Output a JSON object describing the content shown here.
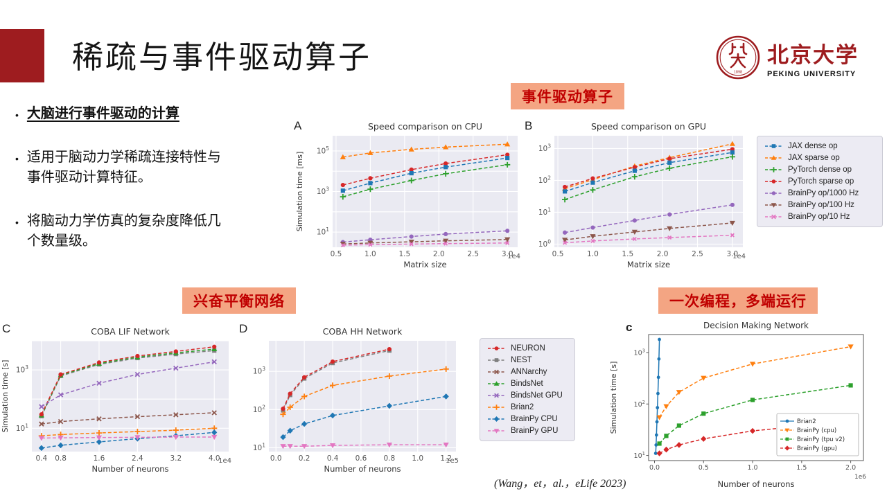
{
  "header": {
    "title": "稀疏与事件驱动算子",
    "logo_cn": "北京大学",
    "logo_en": "PEKING UNIVERSITY",
    "seal_year": "1898"
  },
  "bullets": [
    "大脑进行事件驱动的计算",
    "适用于脑动力学稀疏连接特性与事件驱动计算特征。",
    "将脑动力学仿真的复杂度降低几个数量级。"
  ],
  "tags": {
    "event_driven": "事件驱动算子",
    "ei_network": "兴奋平衡网络",
    "multi_platform": "一次编程，多端运行"
  },
  "citation": "(Wang，et，al.，eLife 2023)",
  "legend_ab": {
    "items": [
      {
        "label": "JAX dense op",
        "color": "#1f77b4",
        "marker": "square"
      },
      {
        "label": "JAX sparse op",
        "color": "#ff7f0e",
        "marker": "triangle-up"
      },
      {
        "label": "PyTorch dense op",
        "color": "#2ca02c",
        "marker": "plus"
      },
      {
        "label": "PyTorch sparse op",
        "color": "#d62728",
        "marker": "circle"
      },
      {
        "label": "BrainPy op/1000 Hz",
        "color": "#9467bd",
        "marker": "circle"
      },
      {
        "label": "BrainPy op/100 Hz",
        "color": "#8c564b",
        "marker": "triangle-down"
      },
      {
        "label": "BrainPy op/10 Hz",
        "color": "#e377c2",
        "marker": "x"
      }
    ]
  },
  "legend_cd": {
    "items": [
      {
        "label": "NEURON",
        "color": "#d62728",
        "marker": "circle"
      },
      {
        "label": "NEST",
        "color": "#7f7f7f",
        "marker": "square"
      },
      {
        "label": "ANNarchy",
        "color": "#8c564b",
        "marker": "x"
      },
      {
        "label": "BindsNet",
        "color": "#2ca02c",
        "marker": "triangle-up"
      },
      {
        "label": "BindsNet GPU",
        "color": "#9467bd",
        "marker": "x"
      },
      {
        "label": "Brian2",
        "color": "#ff7f0e",
        "marker": "plus"
      },
      {
        "label": "BrainPy CPU",
        "color": "#1f77b4",
        "marker": "diamond"
      },
      {
        "label": "BrainPy GPU",
        "color": "#e377c2",
        "marker": "triangle-down"
      }
    ]
  },
  "chart_data": [
    {
      "id": "chart-speed-cpu",
      "type": "line",
      "panel": "A",
      "title": "Speed comparison on CPU",
      "xlabel": "Matrix size",
      "ylabel": "Simulation time [ms]",
      "x_offset": "1e4",
      "x_scale": 10000,
      "xlim": [
        4500,
        31500
      ],
      "xticks": [
        0.5,
        1.0,
        1.5,
        2.0,
        2.5,
        3.0
      ],
      "xtick_labels": [
        "0.5",
        "1.0",
        "1.5",
        "2.0",
        "2.5",
        "3.0"
      ],
      "ylog": true,
      "ylim_exp": [
        0.25,
        5.75
      ],
      "ytick_exps": [
        1,
        3,
        5
      ],
      "grid": true,
      "bg": "#eaeaf2",
      "x": [
        6000,
        10000,
        16000,
        21000,
        30000
      ],
      "series": [
        {
          "name": "JAX sparse op",
          "color": "#ff7f0e",
          "marker": "triangle-up",
          "values": [
            50000,
            80000,
            120000,
            155000,
            215000
          ]
        },
        {
          "name": "PyTorch sparse op",
          "color": "#d62728",
          "marker": "circle",
          "values": [
            2100,
            4500,
            12000,
            24000,
            65000
          ]
        },
        {
          "name": "JAX dense op",
          "color": "#1f77b4",
          "marker": "square",
          "values": [
            1100,
            2600,
            8000,
            16000,
            45000
          ]
        },
        {
          "name": "PyTorch dense op",
          "color": "#2ca02c",
          "marker": "plus",
          "values": [
            550,
            1300,
            3500,
            7500,
            21000
          ]
        },
        {
          "name": "BrainPy op/1000 Hz",
          "color": "#9467bd",
          "marker": "circle",
          "values": [
            3.2,
            4.2,
            6.0,
            8.0,
            11.5
          ]
        },
        {
          "name": "BrainPy op/100 Hz",
          "color": "#8c564b",
          "marker": "triangle-down",
          "values": [
            2.6,
            2.9,
            3.3,
            3.7,
            4.3
          ]
        },
        {
          "name": "BrainPy op/10 Hz",
          "color": "#e377c2",
          "marker": "x",
          "msize": 2.4,
          "values": [
            2.25,
            2.4,
            2.55,
            2.7,
            2.9
          ]
        }
      ]
    },
    {
      "id": "chart-speed-gpu",
      "type": "line",
      "panel": "B",
      "title": "Speed comparison on GPU",
      "xlabel": "Matrix size",
      "ylabel": "",
      "x_offset": "1e4",
      "x_scale": 10000,
      "xlim": [
        4500,
        31500
      ],
      "xticks": [
        0.5,
        1.0,
        1.5,
        2.0,
        2.5,
        3.0
      ],
      "xtick_labels": [
        "0.5",
        "1.0",
        "1.5",
        "2.0",
        "2.5",
        "3.0"
      ],
      "ylog": true,
      "ylim_exp": [
        -0.1,
        3.4
      ],
      "ytick_exps": [
        0,
        1,
        2,
        3
      ],
      "grid": true,
      "bg": "#eaeaf2",
      "x": [
        6000,
        10000,
        16000,
        21000,
        30000
      ],
      "series": [
        {
          "name": "JAX sparse op",
          "color": "#ff7f0e",
          "marker": "triangle-up",
          "values": [
            55,
            105,
            280,
            520,
            1400
          ]
        },
        {
          "name": "PyTorch sparse op",
          "color": "#d62728",
          "marker": "circle",
          "values": [
            62,
            115,
            260,
            480,
            950
          ]
        },
        {
          "name": "JAX dense op",
          "color": "#1f77b4",
          "marker": "square",
          "values": [
            45,
            85,
            200,
            360,
            750
          ]
        },
        {
          "name": "PyTorch dense op",
          "color": "#2ca02c",
          "marker": "plus",
          "values": [
            25,
            50,
            130,
            240,
            550
          ]
        },
        {
          "name": "BrainPy op/1000 Hz",
          "color": "#9467bd",
          "marker": "circle",
          "values": [
            2.3,
            3.3,
            5.5,
            8.5,
            17
          ]
        },
        {
          "name": "BrainPy op/100 Hz",
          "color": "#8c564b",
          "marker": "triangle-down",
          "values": [
            1.35,
            1.75,
            2.4,
            3.1,
            4.6
          ]
        },
        {
          "name": "BrainPy op/10 Hz",
          "color": "#e377c2",
          "marker": "x",
          "msize": 2.4,
          "values": [
            1.1,
            1.25,
            1.45,
            1.6,
            1.9
          ]
        }
      ]
    },
    {
      "id": "chart-coba-lif",
      "type": "line",
      "panel": "C",
      "title": "COBA LIF Network",
      "xlabel": "Number of neurons",
      "ylabel": "Simulation time [s]",
      "x_offset": "1e4",
      "x_scale": 10000,
      "xlim": [
        2000,
        43000
      ],
      "xticks": [
        0.4,
        0.8,
        1.6,
        2.4,
        3.2,
        4.0
      ],
      "xtick_labels": [
        "0.4",
        "0.8",
        "1.6",
        "2.4",
        "3.2",
        "4.0"
      ],
      "ylog": true,
      "ylim_exp": [
        0.2,
        4.0
      ],
      "ytick_exps": [
        1,
        3
      ],
      "grid": true,
      "bg": "#eaeaf2",
      "x": [
        4000,
        8000,
        16000,
        24000,
        32000,
        40000
      ],
      "series": [
        {
          "name": "NEST",
          "color": "#7f7f7f",
          "marker": "square",
          "values": [
            26,
            620,
            1550,
            2550,
            3500,
            4600
          ]
        },
        {
          "name": "BindsNet",
          "color": "#2ca02c",
          "marker": "triangle-up",
          "values": [
            28,
            660,
            1650,
            2750,
            3850,
            5200
          ]
        },
        {
          "name": "NEURON",
          "color": "#d62728",
          "marker": "circle",
          "values": [
            30,
            700,
            1800,
            3000,
            4300,
            6200
          ]
        },
        {
          "name": "BindsNet GPU",
          "color": "#9467bd",
          "marker": "x",
          "values": [
            55,
            140,
            350,
            700,
            1150,
            1900
          ]
        },
        {
          "name": "ANNarchy",
          "color": "#8c564b",
          "marker": "x",
          "values": [
            14,
            17,
            21,
            25,
            29,
            34
          ]
        },
        {
          "name": "Brian2",
          "color": "#ff7f0e",
          "marker": "plus",
          "values": [
            5.5,
            6.1,
            6.9,
            7.7,
            8.6,
            10
          ]
        },
        {
          "name": "BrainPy CPU",
          "color": "#1f77b4",
          "marker": "diamond",
          "values": [
            2.1,
            2.6,
            3.4,
            4.4,
            5.5,
            7.2
          ]
        },
        {
          "name": "BrainPy GPU",
          "color": "#e377c2",
          "marker": "triangle-down",
          "values": [
            4.6,
            4.7,
            4.8,
            4.9,
            5.0,
            5.0
          ]
        }
      ]
    },
    {
      "id": "chart-coba-hh",
      "type": "line",
      "panel": "D",
      "title": "COBA HH Network",
      "xlabel": "Number of neurons",
      "ylabel": "",
      "x_offset": "1e5",
      "x_scale": 100000,
      "xlim": [
        -5000,
        127000
      ],
      "xticks": [
        0.0,
        0.2,
        0.4,
        0.6,
        0.8,
        1.0,
        1.2
      ],
      "xtick_labels": [
        "0.0",
        "0.2",
        "0.4",
        "0.6",
        "0.8",
        "1.0",
        "1.2"
      ],
      "ylog": true,
      "ylim_exp": [
        0.9,
        3.8
      ],
      "ytick_exps": [
        1,
        2,
        3
      ],
      "grid": true,
      "bg": "#eaeaf2",
      "x": [
        5000,
        10000,
        20000,
        40000,
        80000,
        120000
      ],
      "series": [
        {
          "name": "NEST",
          "color": "#7f7f7f",
          "marker": "square",
          "x": [
            5000,
            10000,
            20000,
            40000,
            80000
          ],
          "values": [
            95,
            240,
            650,
            1650,
            3500
          ]
        },
        {
          "name": "NEURON",
          "color": "#d62728",
          "marker": "circle",
          "x": [
            5000,
            10000,
            20000,
            40000,
            80000
          ],
          "values": [
            105,
            260,
            700,
            1800,
            3800
          ]
        },
        {
          "name": "Brian2",
          "color": "#ff7f0e",
          "marker": "plus",
          "values": [
            75,
            115,
            220,
            430,
            750,
            1150
          ]
        },
        {
          "name": "BrainPy CPU",
          "color": "#1f77b4",
          "marker": "diamond",
          "values": [
            19,
            28,
            42,
            70,
            125,
            220
          ]
        },
        {
          "name": "BrainPy GPU",
          "color": "#e377c2",
          "marker": "triangle-down",
          "values": [
            11,
            11,
            11,
            11.5,
            12,
            12
          ]
        }
      ]
    },
    {
      "id": "chart-decision-making",
      "type": "line",
      "panel": "c",
      "title": "Decision Making Network",
      "xlabel": "Number of neurons",
      "ylabel": "Simulation time [s]",
      "x_offset": "1e6",
      "x_scale": 1000000,
      "xlim": [
        -60000,
        2130000
      ],
      "xticks": [
        0.0,
        0.5,
        1.0,
        1.5,
        2.0
      ],
      "xtick_labels": [
        "0.0",
        "0.5",
        "1.0",
        "1.5",
        "2.0"
      ],
      "ylog": true,
      "ylim_exp": [
        0.9,
        3.35
      ],
      "ytick_exps": [
        1,
        2,
        3
      ],
      "grid": false,
      "bg": "#ffffff",
      "x": [
        50000,
        120000,
        250000,
        500000,
        1000000,
        2000000
      ],
      "series": [
        {
          "name": "Brian2",
          "color": "#1f77b4",
          "marker": "circle",
          "solid": true,
          "msize": 2.4,
          "x": [
            12000,
            16000,
            20000,
            25000,
            30000,
            35000,
            40000,
            45000,
            50000
          ],
          "values": [
            11,
            16,
            25,
            45,
            85,
            160,
            330,
            750,
            1800
          ]
        },
        {
          "name": "BrainPy (cpu)",
          "color": "#ff7f0e",
          "marker": "triangle-down",
          "values": [
            55,
            90,
            170,
            320,
            600,
            1300
          ]
        },
        {
          "name": "BrainPy (tpu v2)",
          "color": "#2ca02c",
          "marker": "square",
          "values": [
            17,
            24,
            38,
            65,
            120,
            230
          ]
        },
        {
          "name": "BrainPy (gpu)",
          "color": "#d62728",
          "marker": "diamond",
          "values": [
            11,
            13,
            16,
            21,
            30,
            46
          ]
        }
      ],
      "legend": {
        "position": "lower-right",
        "items": [
          {
            "label": "Brian2",
            "color": "#1f77b4",
            "marker": "circle",
            "solid": true
          },
          {
            "label": "BrainPy (cpu)",
            "color": "#ff7f0e",
            "marker": "triangle-down"
          },
          {
            "label": "BrainPy (tpu v2)",
            "color": "#2ca02c",
            "marker": "square"
          },
          {
            "label": "BrainPy (gpu)",
            "color": "#d62728",
            "marker": "diamond"
          }
        ]
      }
    }
  ]
}
